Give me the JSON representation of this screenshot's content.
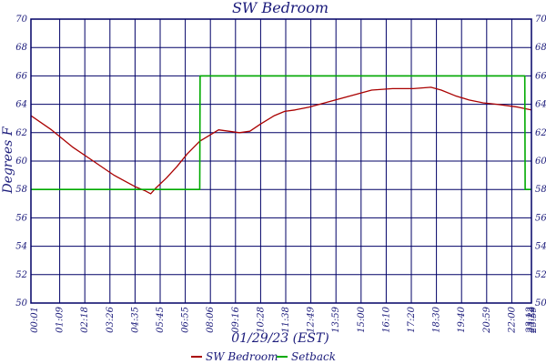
{
  "chart_data": {
    "type": "line",
    "title": "SW Bedroom",
    "xlabel": "01/29/23 (EST)",
    "ylabel": "Degrees F",
    "ylim": [
      50,
      70
    ],
    "yticks": [
      "50",
      "52",
      "54",
      "56",
      "58",
      "60",
      "62",
      "64",
      "66",
      "68",
      "70"
    ],
    "xticks": [
      "00:01",
      "01:09",
      "02:18",
      "03:26",
      "04:35",
      "05:45",
      "06:55",
      "08:06",
      "09:16",
      "10:28",
      "11:38",
      "12:49",
      "13:59",
      "15:00",
      "16:10",
      "17:20",
      "18:30",
      "19:40",
      "20:59",
      "22:00",
      "23:12",
      "23:22",
      "23:59"
    ],
    "grid": true,
    "legend_position": "bottom",
    "colors": {
      "frame": "#000066",
      "grid": "#000066",
      "sw": "#aa0000",
      "setback": "#00aa00"
    },
    "series": [
      {
        "name": "SW Bedroom",
        "x_minutes": [
          1,
          60,
          120,
          180,
          240,
          300,
          330,
          345,
          360,
          390,
          420,
          450,
          486,
          540,
          600,
          630,
          660,
          700,
          730,
          760,
          800,
          860,
          920,
          980,
          1040,
          1100,
          1150,
          1180,
          1220,
          1260,
          1300,
          1340,
          1400,
          1438
        ],
        "values": [
          63.2,
          62.2,
          61.0,
          60.0,
          59.0,
          58.2,
          57.9,
          57.7,
          58.1,
          58.8,
          59.6,
          60.5,
          61.4,
          62.2,
          62.0,
          62.1,
          62.6,
          63.2,
          63.5,
          63.6,
          63.8,
          64.2,
          64.6,
          65.0,
          65.1,
          65.1,
          65.2,
          65.0,
          64.6,
          64.3,
          64.1,
          64.0,
          63.8,
          63.6
        ]
      },
      {
        "name": "Setback",
        "x_minutes": [
          1,
          486,
          487,
          1420,
          1421,
          1438
        ],
        "values": [
          58,
          58,
          66,
          66,
          58,
          58
        ]
      }
    ]
  }
}
